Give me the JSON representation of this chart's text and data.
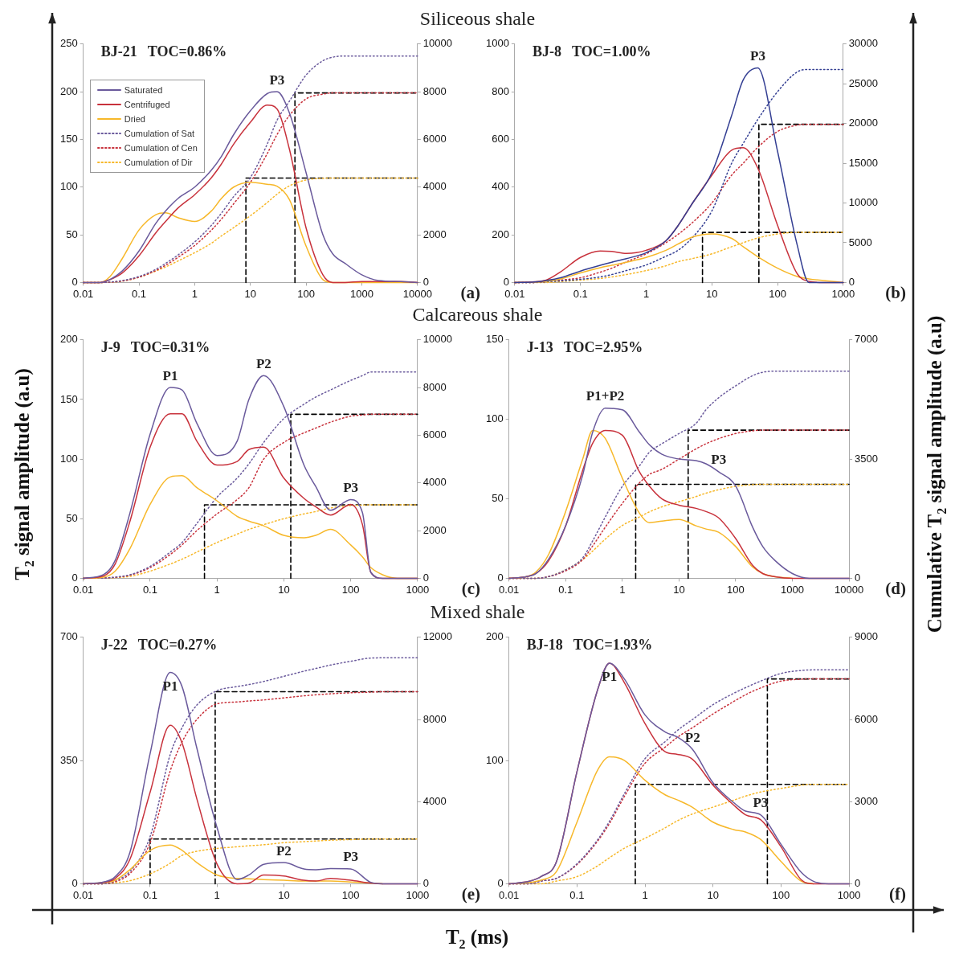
{
  "chart_data": [
    {
      "type": "line",
      "title": "BJ-21   TOC=0.86%",
      "subtitle": "Siliceous shale",
      "log": "x",
      "marker": "none",
      "legend": "top left",
      "x": [
        0.01,
        0.02,
        0.03,
        0.05,
        0.1,
        0.2,
        0.3,
        0.5,
        1,
        2,
        3,
        5,
        10,
        20,
        30,
        50,
        100,
        200,
        300,
        500,
        1000,
        2000,
        5000,
        10000
      ],
      "xlim": [
        0.01,
        10000
      ],
      "xticks": [
        0.01,
        0.1,
        1,
        10,
        100,
        1000,
        10000
      ],
      "ylim": [
        0,
        250
      ],
      "yticks": [
        0,
        50,
        100,
        150,
        200,
        250
      ],
      "y2lim": [
        0,
        10000
      ],
      "y2ticks": [
        0,
        2000,
        4000,
        6000,
        8000,
        10000
      ],
      "series": [
        {
          "name": "Saturated",
          "color": "#6a5a9c",
          "values": [
            0,
            0,
            3,
            12,
            33,
            62,
            75,
            88,
            100,
            118,
            132,
            155,
            180,
            198,
            200,
            178,
            115,
            50,
            30,
            20,
            8,
            2,
            1,
            0
          ]
        },
        {
          "name": "Centrifuged",
          "color": "#c8323c",
          "values": [
            0,
            0,
            3,
            10,
            28,
            52,
            64,
            78,
            92,
            110,
            124,
            145,
            168,
            186,
            182,
            140,
            57,
            8,
            0,
            0,
            1,
            1,
            1,
            0
          ]
        },
        {
          "name": "Dried",
          "color": "#f7b82a",
          "values": [
            0,
            0,
            6,
            25,
            55,
            71,
            73,
            68,
            64,
            75,
            88,
            100,
            105,
            103,
            101,
            87,
            38,
            3,
            0,
            0,
            0,
            0,
            0,
            0
          ]
        },
        {
          "name": "Cumulation of Sat",
          "color": "#6a5a9c",
          "line_style": "dotted",
          "axis": "y2",
          "values": [
            0,
            0,
            20,
            80,
            250,
            550,
            800,
            1150,
            1700,
            2400,
            2900,
            3600,
            4400,
            5800,
            6800,
            7600,
            8700,
            9300,
            9450,
            9500,
            9500,
            9500,
            9500,
            9500
          ]
        },
        {
          "name": "Cumulation of Cen",
          "color": "#c8323c",
          "line_style": "dotted",
          "axis": "y2",
          "values": [
            0,
            0,
            10,
            60,
            220,
            500,
            720,
            1050,
            1550,
            2200,
            2650,
            3300,
            4200,
            5400,
            6200,
            7000,
            7700,
            7900,
            7950,
            7950,
            7950,
            7950,
            7950,
            7950
          ]
        },
        {
          "name": "Cumulation of Dir",
          "color": "#f7b82a",
          "line_style": "dotted",
          "axis": "y2",
          "values": [
            0,
            0,
            10,
            60,
            220,
            480,
            650,
            900,
            1250,
            1650,
            1950,
            2300,
            2800,
            3350,
            3700,
            4050,
            4300,
            4370,
            4380,
            4380,
            4380,
            4380,
            4380,
            4380
          ]
        },
        {
          "color": "#000000",
          "line_style": "dashed",
          "axis": "y2",
          "x": [
            8.3,
            8.3,
            10000
          ],
          "values": [
            0,
            4380,
            4380
          ]
        },
        {
          "color": "#000000",
          "line_style": "dashed",
          "axis": "y2",
          "x": [
            63,
            63,
            10000
          ],
          "values": [
            0,
            7950,
            7950
          ]
        }
      ],
      "annotations": [
        {
          "text": "P3",
          "x": 30,
          "y": 200
        },
        "(a)"
      ]
    },
    {
      "type": "line",
      "title": "BJ-8   TOC=1.00%",
      "log": "x",
      "marker": "none",
      "x": [
        0.01,
        0.02,
        0.03,
        0.05,
        0.1,
        0.2,
        0.3,
        0.5,
        1,
        2,
        3,
        5,
        10,
        20,
        30,
        50,
        100,
        200,
        300,
        500,
        1000
      ],
      "xlim": [
        0.01,
        1000
      ],
      "xticks": [
        0.01,
        0.1,
        1,
        10,
        100,
        1000
      ],
      "ylim": [
        0,
        1000
      ],
      "yticks": [
        0,
        200,
        400,
        600,
        800,
        1000
      ],
      "y2lim": [
        0,
        30000
      ],
      "y2ticks": [
        0,
        5000,
        10000,
        15000,
        20000,
        25000,
        30000
      ],
      "series": [
        {
          "color": "#343f93",
          "values": [
            0,
            2,
            8,
            20,
            48,
            72,
            85,
            100,
            125,
            175,
            235,
            330,
            460,
            700,
            850,
            900,
            550,
            155,
            0,
            0,
            0
          ]
        },
        {
          "color": "#c8323c",
          "values": [
            0,
            3,
            10,
            45,
            105,
            132,
            130,
            122,
            135,
            175,
            235,
            330,
            450,
            555,
            565,
            480,
            240,
            36,
            5,
            0,
            0
          ]
        },
        {
          "color": "#f7b82a",
          "values": [
            0,
            1,
            5,
            15,
            40,
            62,
            72,
            85,
            105,
            135,
            160,
            190,
            204,
            185,
            150,
            108,
            60,
            25,
            15,
            8,
            0
          ]
        },
        {
          "color": "#343f93",
          "line_style": "dotted",
          "axis": "y2",
          "values": [
            0,
            0,
            100,
            200,
            400,
            700,
            1000,
            1500,
            2200,
            3300,
            4000,
            5600,
            9000,
            15000,
            17500,
            20500,
            24000,
            26500,
            26800,
            26800,
            26800
          ]
        },
        {
          "color": "#c8323c",
          "line_style": "dotted",
          "axis": "y2",
          "values": [
            0,
            0,
            100,
            300,
            600,
            1300,
            1800,
            2600,
            3600,
            5000,
            6000,
            7500,
            10000,
            13500,
            15000,
            17000,
            19000,
            19800,
            19900,
            19900,
            19900
          ]
        },
        {
          "color": "#f7b82a",
          "line_style": "dotted",
          "axis": "y2",
          "values": [
            0,
            0,
            0,
            100,
            300,
            500,
            700,
            1000,
            1500,
            2100,
            2600,
            3000,
            3600,
            4500,
            5000,
            5600,
            6100,
            6300,
            6300,
            6300,
            6300
          ]
        },
        {
          "color": "#000000",
          "line_style": "dashed",
          "axis": "y2",
          "x": [
            7.2,
            7.2,
            1000
          ],
          "values": [
            0,
            6300,
            6300
          ]
        },
        {
          "color": "#000000",
          "line_style": "dashed",
          "axis": "y2",
          "x": [
            52,
            52,
            1000
          ],
          "values": [
            0,
            19900,
            19900
          ]
        }
      ],
      "annotations": [
        {
          "text": "P3",
          "x": 50,
          "y": 900
        },
        "(b)"
      ]
    },
    {
      "type": "line",
      "title": "J-9   TOC=0.31%",
      "subtitle": "Calcareous shale",
      "ylabel": "T$_{2}$ signal amplitude (a.u)",
      "log": "x",
      "marker": "none",
      "x": [
        0.01,
        0.02,
        0.03,
        0.05,
        0.1,
        0.2,
        0.3,
        0.5,
        1,
        2,
        3,
        5,
        10,
        20,
        30,
        50,
        100,
        150,
        200,
        300,
        500,
        1000
      ],
      "xlim": [
        0.01,
        1000
      ],
      "xticks": [
        0.01,
        0.1,
        1,
        10,
        100,
        1000
      ],
      "ylim": [
        0,
        200
      ],
      "yticks": [
        0,
        50,
        100,
        150,
        200
      ],
      "y2lim": [
        0,
        10000
      ],
      "y2ticks": [
        0,
        2000,
        4000,
        6000,
        8000,
        10000
      ],
      "series": [
        {
          "color": "#6a5a9c",
          "values": [
            0,
            3,
            15,
            55,
            121,
            160,
            158,
            130,
            103,
            115,
            150,
            170,
            144,
            95,
            77,
            57,
            66,
            55,
            5,
            0,
            0,
            0
          ]
        },
        {
          "color": "#c8323c",
          "values": [
            0,
            2,
            12,
            48,
            110,
            138,
            138,
            115,
            95,
            98,
            108,
            110,
            84,
            67,
            60,
            53,
            62,
            45,
            5,
            0,
            0,
            0
          ]
        },
        {
          "color": "#f7b82a",
          "values": [
            0,
            1,
            6,
            25,
            62,
            85,
            86,
            76,
            65,
            52,
            48,
            44,
            36,
            34,
            36,
            41,
            28,
            18,
            9,
            3,
            0,
            0
          ]
        },
        {
          "color": "#6a5a9c",
          "line_style": "dotted",
          "axis": "y2",
          "values": [
            0,
            10,
            50,
            150,
            500,
            1100,
            1500,
            2300,
            3400,
            4200,
            4800,
            5700,
            6700,
            7300,
            7600,
            7900,
            8300,
            8500,
            8650,
            8650,
            8650,
            8650
          ]
        },
        {
          "color": "#c8323c",
          "line_style": "dotted",
          "axis": "y2",
          "values": [
            0,
            10,
            40,
            130,
            450,
            1000,
            1400,
            2000,
            2700,
            3300,
            3800,
            5000,
            5700,
            6100,
            6300,
            6550,
            6800,
            6850,
            6880,
            6880,
            6880,
            6880
          ]
        },
        {
          "color": "#f7b82a",
          "line_style": "dotted",
          "axis": "y2",
          "values": [
            0,
            10,
            30,
            80,
            300,
            600,
            800,
            1100,
            1500,
            1850,
            2050,
            2250,
            2500,
            2700,
            2800,
            2950,
            3050,
            3070,
            3080,
            3080,
            3080,
            3080
          ]
        },
        {
          "color": "#000000",
          "line_style": "dashed",
          "axis": "y2",
          "x": [
            0.65,
            0.65,
            1000
          ],
          "values": [
            0,
            3080,
            3080
          ]
        },
        {
          "color": "#000000",
          "line_style": "dashed",
          "axis": "y2",
          "x": [
            12.7,
            12.7,
            1000
          ],
          "values": [
            0,
            6880,
            6880
          ]
        }
      ],
      "annotations": [
        {
          "text": "P1",
          "x": 0.2,
          "y": 160
        },
        {
          "text": "P2",
          "x": 5,
          "y": 170
        },
        {
          "text": "P3",
          "x": 100,
          "y": 66
        },
        "(c)"
      ]
    },
    {
      "type": "line",
      "title": "J-13   TOC=2.95%",
      "y2label": "Cumulative T$_{2}$ signal amplitude (a.u)",
      "log": "x",
      "marker": "none",
      "x": [
        0.01,
        0.02,
        0.03,
        0.05,
        0.1,
        0.2,
        0.3,
        0.5,
        1,
        2,
        3,
        5,
        10,
        20,
        30,
        50,
        100,
        200,
        300,
        500,
        1000,
        2000,
        5000,
        10000
      ],
      "xlim": [
        0.01,
        10000
      ],
      "xticks": [
        0.01,
        0.1,
        1,
        10,
        100,
        1000,
        10000
      ],
      "ylim": [
        0,
        150
      ],
      "yticks": [
        0,
        50,
        100,
        150
      ],
      "y2lim": [
        0,
        7000
      ],
      "y2ticks": [
        0,
        3500,
        7000
      ],
      "series": [
        {
          "color": "#6a5a9c",
          "values": [
            0,
            1,
            3,
            12,
            33,
            65,
            92,
            107,
            106,
            92,
            84,
            78,
            75,
            74,
            72,
            67,
            58,
            32,
            20,
            11,
            3,
            0,
            0,
            0
          ]
        },
        {
          "color": "#c8323c",
          "values": [
            0,
            1,
            3,
            11,
            33,
            68,
            85,
            93,
            90,
            67,
            58,
            50,
            46,
            44,
            42,
            38,
            25,
            8,
            3,
            1,
            0,
            0,
            0,
            0
          ]
        },
        {
          "color": "#f7b82a",
          "values": [
            0,
            1,
            4,
            15,
            42,
            75,
            93,
            88,
            63,
            41,
            35,
            36,
            37,
            33,
            31,
            29,
            20,
            7,
            3,
            1,
            0,
            null,
            null,
            null
          ]
        },
        {
          "color": "#6a5a9c",
          "line_style": "dotted",
          "axis": "y2",
          "values": [
            0,
            0,
            0,
            50,
            250,
            600,
            1100,
            1800,
            2700,
            3300,
            3700,
            3950,
            4250,
            4550,
            4950,
            5300,
            5650,
            5950,
            6050,
            6080,
            6080,
            6080,
            6080,
            6080
          ]
        },
        {
          "color": "#c8323c",
          "line_style": "dotted",
          "axis": "y2",
          "values": [
            0,
            0,
            0,
            50,
            220,
            550,
            950,
            1500,
            2200,
            2800,
            3050,
            3200,
            3500,
            3800,
            3950,
            4100,
            4250,
            4330,
            4350,
            4350,
            4350,
            4350,
            4350,
            4350
          ]
        },
        {
          "color": "#f7b82a",
          "line_style": "dotted",
          "axis": "y2",
          "values": [
            0,
            0,
            0,
            50,
            250,
            550,
            800,
            1150,
            1550,
            1800,
            1950,
            2100,
            2250,
            2400,
            2500,
            2600,
            2700,
            2750,
            2760,
            2760,
            2760,
            2760,
            2760,
            2760
          ]
        },
        {
          "color": "#000000",
          "line_style": "dashed",
          "axis": "y2",
          "x": [
            1.72,
            1.72,
            10000
          ],
          "values": [
            0,
            2760,
            2760
          ]
        },
        {
          "color": "#000000",
          "line_style": "dashed",
          "axis": "y2",
          "x": [
            14.5,
            14.5,
            10000
          ],
          "values": [
            0,
            4350,
            4350
          ]
        }
      ],
      "annotations": [
        {
          "text": "P1+P2",
          "x": 0.5,
          "y": 107
        },
        {
          "text": "P3",
          "x": 50,
          "y": 67
        },
        "(d)"
      ]
    },
    {
      "type": "line",
      "title": "J-22   TOC=0.27%",
      "subtitle": "Mixed shale",
      "xlabel": "T$_{2}$ (ms)",
      "log": "x",
      "marker": "none",
      "x": [
        0.01,
        0.02,
        0.03,
        0.05,
        0.1,
        0.2,
        0.3,
        0.5,
        1,
        2,
        3,
        5,
        10,
        20,
        30,
        50,
        100,
        200,
        300,
        500,
        1000
      ],
      "xlim": [
        0.01,
        1000
      ],
      "xticks": [
        0.01,
        0.1,
        1,
        10,
        100,
        1000
      ],
      "ylim": [
        0,
        700
      ],
      "yticks": [
        0,
        350,
        700
      ],
      "y2lim": [
        0,
        12000
      ],
      "y2ticks": [
        0,
        4000,
        8000,
        12000
      ],
      "series": [
        {
          "color": "#6a5a9c",
          "values": [
            0,
            5,
            20,
            90,
            370,
            600,
            560,
            385,
            160,
            12,
            25,
            55,
            60,
            42,
            40,
            43,
            42,
            4,
            0,
            0,
            0
          ]
        },
        {
          "color": "#c8323c",
          "values": [
            0,
            4,
            15,
            70,
            260,
            450,
            400,
            241,
            56,
            0,
            2,
            25,
            22,
            10,
            8,
            15,
            10,
            2,
            0,
            0,
            0
          ]
        },
        {
          "color": "#f7b82a",
          "values": [
            0,
            3,
            10,
            40,
            95,
            110,
            95,
            60,
            25,
            15,
            14,
            12,
            10,
            8,
            8,
            8,
            5,
            2,
            0,
            null,
            null
          ]
        },
        {
          "color": "#6a5a9c",
          "line_style": "dotted",
          "axis": "y2",
          "values": [
            0,
            0,
            150,
            600,
            2300,
            6300,
            7600,
            8700,
            9400,
            9600,
            9700,
            9850,
            10100,
            10350,
            10480,
            10650,
            10830,
            10990,
            11000,
            11000,
            11000
          ]
        },
        {
          "color": "#c8323c",
          "line_style": "dotted",
          "axis": "y2",
          "values": [
            0,
            0,
            100,
            500,
            2000,
            5500,
            6900,
            8000,
            8760,
            8850,
            8900,
            8950,
            9050,
            9150,
            9200,
            9250,
            9300,
            9330,
            9350,
            9350,
            9350
          ]
        },
        {
          "color": "#f7b82a",
          "line_style": "dotted",
          "axis": "y2",
          "values": [
            0,
            0,
            50,
            150,
            480,
            1000,
            1380,
            1580,
            1720,
            1800,
            1850,
            1900,
            2000,
            2050,
            2080,
            2120,
            2150,
            2180,
            2180,
            2180,
            2180
          ]
        },
        {
          "color": "#000000",
          "line_style": "dashed",
          "axis": "y2",
          "x": [
            0.1,
            0.1,
            1000
          ],
          "values": [
            0,
            2180,
            2180
          ]
        },
        {
          "color": "#000000",
          "line_style": "dashed",
          "axis": "y2",
          "x": [
            0.94,
            0.94,
            1000
          ],
          "values": [
            0,
            9350,
            9350
          ]
        }
      ],
      "annotations": [
        {
          "text": "P1",
          "x": 0.2,
          "y": 600
        },
        {
          "text": "P2",
          "x": 10,
          "y": 60
        },
        {
          "text": "P3",
          "x": 100,
          "y": 42
        },
        "(e)"
      ]
    },
    {
      "type": "line",
      "title": "BJ-18   TOC=1.93%",
      "log": "x",
      "marker": "none",
      "x": [
        0.01,
        0.02,
        0.03,
        0.05,
        0.1,
        0.2,
        0.3,
        0.5,
        1,
        2,
        3,
        5,
        10,
        20,
        30,
        50,
        100,
        200,
        300,
        500,
        1000
      ],
      "xlim": [
        0.01,
        1000
      ],
      "xticks": [
        0.01,
        0.1,
        1,
        10,
        100,
        1000
      ],
      "ylim": [
        0,
        200
      ],
      "yticks": [
        0,
        100,
        200
      ],
      "y2lim": [
        0,
        9000
      ],
      "y2ticks": [
        0,
        3000,
        6000,
        9000
      ],
      "series": [
        {
          "color": "#6a5a9c",
          "values": [
            0,
            2,
            6,
            18,
            91,
            157,
            179,
            166,
            137,
            123,
            119,
            109,
            82,
            66,
            59,
            56,
            32,
            9,
            2,
            0,
            0
          ]
        },
        {
          "color": "#c8323c",
          "values": [
            0,
            2,
            6,
            18,
            91,
            157,
            179,
            163,
            130,
            107,
            105,
            101,
            80,
            64,
            56,
            52,
            30,
            3,
            0,
            0,
            0
          ]
        },
        {
          "color": "#f7b82a",
          "values": [
            0,
            1,
            3,
            10,
            50,
            92,
            103,
            100,
            84,
            72,
            68,
            62,
            50,
            44,
            42,
            36,
            18,
            2,
            0,
            null,
            null
          ]
        },
        {
          "color": "#6a5a9c",
          "line_style": "dotted",
          "axis": "y2",
          "values": [
            0,
            0,
            100,
            200,
            730,
            1600,
            2280,
            3300,
            4570,
            5200,
            5600,
            6000,
            6540,
            6950,
            7160,
            7400,
            7680,
            7790,
            7810,
            7810,
            7810
          ]
        },
        {
          "color": "#c8323c",
          "line_style": "dotted",
          "axis": "y2",
          "values": [
            0,
            0,
            100,
            200,
            700,
            1550,
            2200,
            3200,
            4400,
            5000,
            5350,
            5700,
            6200,
            6650,
            6900,
            7150,
            7400,
            7470,
            7480,
            7480,
            7480
          ]
        },
        {
          "color": "#f7b82a",
          "line_style": "dotted",
          "axis": "y2",
          "values": [
            0,
            0,
            0,
            100,
            260,
            650,
            950,
            1300,
            1660,
            2050,
            2300,
            2550,
            2800,
            3050,
            3200,
            3350,
            3480,
            3600,
            3630,
            3630,
            3630
          ]
        },
        {
          "color": "#000000",
          "line_style": "dashed",
          "axis": "y2",
          "x": [
            0.72,
            0.72,
            1000
          ],
          "values": [
            0,
            3630,
            3630
          ]
        },
        {
          "color": "#000000",
          "line_style": "dashed",
          "axis": "y2",
          "x": [
            63,
            63,
            1000
          ],
          "values": [
            0,
            7480,
            7480
          ]
        }
      ],
      "annotations": [
        {
          "text": "P1",
          "x": 0.3,
          "y": 179
        },
        {
          "text": "P2",
          "x": 5,
          "y": 109
        },
        {
          "text": "P3",
          "x": 50,
          "y": 56
        },
        "(f)"
      ]
    }
  ]
}
